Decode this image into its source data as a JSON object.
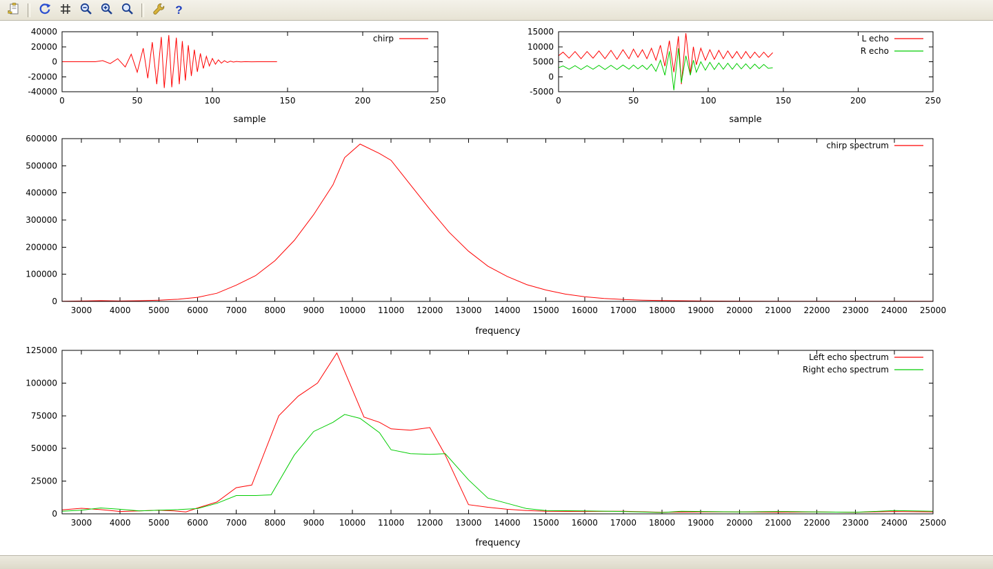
{
  "toolbar": {
    "icons": [
      {
        "name": "copy-clipboard-icon"
      },
      {
        "name": "replot-icon"
      },
      {
        "name": "grid-icon"
      },
      {
        "name": "zoom-previous-icon"
      },
      {
        "name": "zoom-next-icon"
      },
      {
        "name": "autoscale-icon"
      },
      {
        "name": "configure-icon"
      },
      {
        "name": "help-icon"
      }
    ]
  },
  "colors": {
    "series_red": "#ff0000",
    "series_green": "#00cc00",
    "axis": "#000000",
    "toolbar_bg": "#ece9d8"
  },
  "status_bar": {
    "text": ""
  },
  "chart_data": [
    {
      "id": "chirp-signal",
      "type": "line",
      "title": "",
      "xlabel": "sample",
      "ylabel": "",
      "xlim": [
        0,
        250
      ],
      "ylim": [
        -40000,
        40000
      ],
      "xticks": [
        0,
        50,
        100,
        150,
        200,
        250
      ],
      "yticks": [
        -40000,
        -20000,
        0,
        20000,
        40000
      ],
      "grid": false,
      "legend_position": "top-right-inside",
      "series": [
        {
          "name": "chirp",
          "color": "#ff0000",
          "x": [
            0,
            22,
            27,
            32,
            37,
            42,
            46,
            50,
            54,
            57,
            60,
            63,
            66,
            68,
            71,
            73,
            76,
            78,
            80,
            82,
            84,
            86,
            88,
            90,
            92,
            94,
            96,
            98,
            100,
            102,
            104,
            106,
            108,
            110,
            112,
            114,
            116,
            119,
            122,
            126,
            130,
            143
          ],
          "y": [
            0,
            0,
            1500,
            -2500,
            4000,
            -7000,
            10000,
            -14000,
            18000,
            -22000,
            26000,
            -30000,
            33000,
            -35000,
            35500,
            -34000,
            32000,
            -30000,
            27500,
            -25000,
            22000,
            -19000,
            16000,
            -13500,
            11000,
            -9000,
            7200,
            -5600,
            4300,
            -3300,
            2500,
            -1900,
            1400,
            -1000,
            700,
            -500,
            350,
            -220,
            130,
            -70,
            0,
            0
          ]
        }
      ]
    },
    {
      "id": "echo-signals",
      "type": "line",
      "title": "",
      "xlabel": "sample",
      "ylabel": "",
      "xlim": [
        0,
        250
      ],
      "ylim": [
        -5000,
        15000
      ],
      "xticks": [
        0,
        50,
        100,
        150,
        200,
        250
      ],
      "yticks": [
        -5000,
        0,
        5000,
        10000,
        15000
      ],
      "grid": false,
      "legend_position": "top-right-inside",
      "series": [
        {
          "name": "L echo",
          "color": "#ff0000",
          "x": [
            0,
            3,
            7,
            11,
            15,
            19,
            23,
            27,
            31,
            35,
            39,
            43,
            47,
            50,
            53,
            56,
            59,
            62,
            65,
            68,
            71,
            74,
            77,
            80,
            82,
            85,
            88,
            90,
            92,
            95,
            98,
            101,
            104,
            107,
            110,
            113,
            116,
            119,
            122,
            125,
            128,
            131,
            134,
            137,
            140,
            143
          ],
          "y": [
            7000,
            8200,
            6200,
            8400,
            6000,
            8400,
            6200,
            8600,
            6000,
            8800,
            5800,
            9000,
            6000,
            9200,
            6500,
            9000,
            6000,
            9500,
            5500,
            10500,
            3500,
            12000,
            1500,
            13500,
            -2500,
            14500,
            1000,
            10000,
            4000,
            9500,
            5500,
            9000,
            5800,
            8800,
            6000,
            8600,
            6200,
            8400,
            6000,
            8400,
            6200,
            8200,
            6400,
            8200,
            6500,
            8000
          ]
        },
        {
          "name": "R echo",
          "color": "#00cc00",
          "x": [
            0,
            3,
            7,
            11,
            15,
            19,
            23,
            27,
            31,
            35,
            39,
            43,
            47,
            50,
            53,
            56,
            59,
            62,
            65,
            68,
            71,
            74,
            77,
            80,
            82,
            85,
            88,
            90,
            92,
            95,
            98,
            101,
            104,
            107,
            110,
            113,
            116,
            119,
            122,
            125,
            128,
            131,
            134,
            137,
            140,
            143
          ],
          "y": [
            3000,
            3600,
            2500,
            3700,
            2400,
            3700,
            2500,
            3800,
            2400,
            3800,
            2400,
            3900,
            2500,
            3900,
            2600,
            3800,
            2400,
            4200,
            1800,
            5500,
            500,
            8500,
            -4500,
            9500,
            -2000,
            7000,
            500,
            5500,
            1500,
            5000,
            2200,
            4800,
            2400,
            4600,
            2500,
            4500,
            2500,
            4400,
            2600,
            4300,
            2600,
            4200,
            2700,
            4100,
            2800,
            3000
          ]
        }
      ]
    },
    {
      "id": "chirp-spectrum",
      "type": "line",
      "title": "",
      "xlabel": "frequency",
      "ylabel": "",
      "xlim": [
        2500,
        25000
      ],
      "ylim": [
        0,
        600000
      ],
      "xticks": [
        3000,
        4000,
        5000,
        6000,
        7000,
        8000,
        9000,
        10000,
        11000,
        12000,
        13000,
        14000,
        15000,
        16000,
        17000,
        18000,
        19000,
        20000,
        21000,
        22000,
        23000,
        24000,
        25000
      ],
      "yticks": [
        0,
        100000,
        200000,
        300000,
        400000,
        500000,
        600000
      ],
      "grid": false,
      "legend_position": "top-right-inside",
      "series": [
        {
          "name": "chirp spectrum",
          "color": "#ff0000",
          "x": [
            2500,
            3000,
            3500,
            4000,
            4500,
            5000,
            5500,
            6000,
            6500,
            7000,
            7500,
            8000,
            8500,
            9000,
            9500,
            9800,
            10200,
            10700,
            11000,
            11500,
            12000,
            12500,
            13000,
            13500,
            14000,
            14500,
            15000,
            15500,
            16000,
            16500,
            17000,
            17500,
            18000,
            19000,
            20000,
            21000,
            22000,
            23000,
            24000,
            25000
          ],
          "y": [
            800,
            1500,
            2800,
            1500,
            2500,
            4500,
            8000,
            15000,
            30000,
            60000,
            95000,
            150000,
            225000,
            320000,
            430000,
            530000,
            580000,
            545000,
            520000,
            430000,
            340000,
            255000,
            185000,
            130000,
            92000,
            62000,
            42000,
            27000,
            17000,
            11000,
            7000,
            4500,
            3000,
            1500,
            1000,
            800,
            600,
            500,
            400,
            400
          ]
        }
      ]
    },
    {
      "id": "echo-spectra",
      "type": "line",
      "title": "",
      "xlabel": "frequency",
      "ylabel": "",
      "xlim": [
        2500,
        25000
      ],
      "ylim": [
        0,
        125000
      ],
      "xticks": [
        3000,
        4000,
        5000,
        6000,
        7000,
        8000,
        9000,
        10000,
        11000,
        12000,
        13000,
        14000,
        15000,
        16000,
        17000,
        18000,
        19000,
        20000,
        21000,
        22000,
        23000,
        24000,
        25000
      ],
      "yticks": [
        0,
        25000,
        50000,
        75000,
        100000,
        125000
      ],
      "grid": false,
      "legend_position": "top-right-inside",
      "series": [
        {
          "name": "Left echo spectrum",
          "color": "#ff0000",
          "x": [
            2500,
            3000,
            3500,
            4000,
            4500,
            5000,
            5400,
            5700,
            6000,
            6500,
            7000,
            7400,
            8100,
            8600,
            9100,
            9600,
            10000,
            10300,
            10700,
            11000,
            11500,
            12000,
            12400,
            13000,
            13500,
            14000,
            14500,
            15000,
            16000,
            17000,
            18000,
            19000,
            20000,
            21000,
            22000,
            23000,
            24000,
            25000
          ],
          "y": [
            3000,
            4200,
            3200,
            1800,
            2200,
            2800,
            2200,
            1500,
            4500,
            9000,
            20000,
            22000,
            75000,
            90000,
            100000,
            123000,
            95000,
            74000,
            70000,
            65000,
            64000,
            66000,
            45000,
            7000,
            5000,
            3500,
            2500,
            2000,
            1800,
            2000,
            1200,
            1500,
            1500,
            1200,
            1500,
            1200,
            1800,
            1500
          ]
        },
        {
          "name": "Right echo spectrum",
          "color": "#00cc00",
          "x": [
            2500,
            3000,
            3500,
            4000,
            4500,
            5000,
            5500,
            6000,
            6500,
            7000,
            7500,
            7900,
            8500,
            9000,
            9500,
            9800,
            10200,
            10700,
            11000,
            11500,
            12000,
            12400,
            13000,
            13500,
            14000,
            14500,
            15000,
            16000,
            17000,
            18000,
            18500,
            19000,
            20000,
            21000,
            22000,
            23000,
            24000,
            25000
          ],
          "y": [
            2000,
            2800,
            4500,
            3500,
            2200,
            2800,
            3200,
            4000,
            8000,
            14000,
            14000,
            14500,
            45000,
            63000,
            70000,
            76000,
            73000,
            62000,
            49000,
            46000,
            45500,
            46000,
            26000,
            12000,
            8000,
            4000,
            2500,
            2200,
            1800,
            1000,
            2000,
            1800,
            1500,
            1800,
            1500,
            1200,
            2500,
            2000
          ]
        }
      ]
    }
  ]
}
